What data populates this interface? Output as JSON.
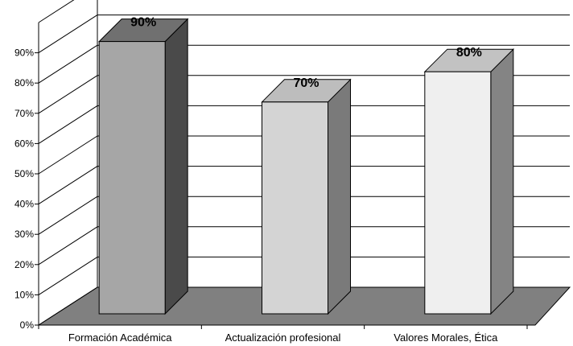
{
  "chart_data": {
    "type": "bar",
    "categories": [
      "Formación Académica",
      "Actualización profesional",
      "Valores Morales, Ética"
    ],
    "values": [
      90,
      70,
      80
    ],
    "data_labels": [
      "90%",
      "70%",
      "80%"
    ],
    "y_ticks": [
      "0%",
      "10%",
      "20%",
      "30%",
      "40%",
      "50%",
      "60%",
      "70%",
      "80%",
      "90%"
    ],
    "ylim": [
      0,
      100
    ],
    "grid": true,
    "three_d": true,
    "colors": {
      "floor": "#808080",
      "gridline": "#000000",
      "bars": [
        {
          "front": "#a6a6a6",
          "top": "#707070",
          "side": "#4a4a4a"
        },
        {
          "front": "#d4d4d4",
          "top": "#bdbdbd",
          "side": "#7a7a7a"
        },
        {
          "front": "#efefef",
          "top": "#c2c2c2",
          "side": "#848484"
        }
      ]
    }
  }
}
